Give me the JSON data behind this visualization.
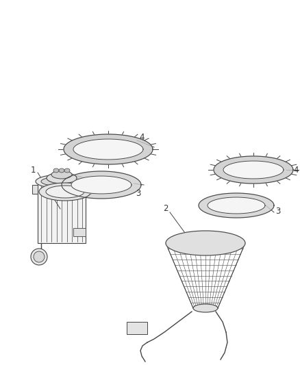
{
  "background_color": "#ffffff",
  "fig_width": 4.38,
  "fig_height": 5.33,
  "dpi": 100,
  "line_color": "#444444",
  "text_color": "#333333",
  "font_size": 8.5
}
